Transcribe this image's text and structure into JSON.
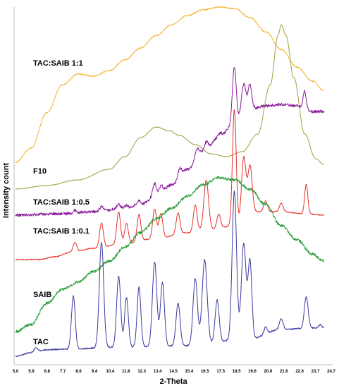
{
  "chart_data": {
    "type": "line",
    "xlabel": "2-Theta",
    "ylabel": "Intensity count",
    "xlim": [
      5.0,
      25.2
    ],
    "x_ticks": [
      "5.0",
      "5.9",
      "6.8",
      "7.7",
      "8.6",
      "9.4",
      "10.4",
      "11.8",
      "12.3",
      "13.4",
      "14.5",
      "15.4",
      "16.5",
      "17.5",
      "18.5",
      "19.6",
      "20.6",
      "21.6",
      "22.6",
      "23.7",
      "24.7"
    ],
    "grid": false,
    "legend": "none (series labelled directly on the left)",
    "series": [
      {
        "name": "TAC:SAIB 1:1",
        "color": "#f5b335",
        "noise": 0.8,
        "points": [
          [
            5.0,
            230
          ],
          [
            6.0,
            210
          ],
          [
            7.0,
            160
          ],
          [
            8.0,
            120
          ],
          [
            9.0,
            105
          ],
          [
            10.0,
            108
          ],
          [
            11.0,
            100
          ],
          [
            12.0,
            85
          ],
          [
            13.0,
            68
          ],
          [
            14.0,
            50
          ],
          [
            15.0,
            35
          ],
          [
            16.0,
            22
          ],
          [
            17.0,
            14
          ],
          [
            18.0,
            10
          ],
          [
            19.0,
            12
          ],
          [
            20.0,
            25
          ],
          [
            21.0,
            45
          ],
          [
            22.0,
            70
          ],
          [
            23.0,
            95
          ],
          [
            24.0,
            115
          ],
          [
            24.7,
            128
          ]
        ]
      },
      {
        "name": "F10",
        "color": "#a0a040",
        "noise": 0.3,
        "points": [
          [
            5.0,
            268
          ],
          [
            7.0,
            263
          ],
          [
            9.0,
            255
          ],
          [
            11.0,
            240
          ],
          [
            12.0,
            222
          ],
          [
            13.0,
            195
          ],
          [
            14.0,
            180
          ],
          [
            14.8,
            185
          ],
          [
            15.5,
            192
          ],
          [
            16.5,
            205
          ],
          [
            17.5,
            218
          ],
          [
            18.5,
            222
          ],
          [
            19.5,
            215
          ],
          [
            20.5,
            190
          ],
          [
            21.3,
            120
          ],
          [
            21.8,
            50
          ],
          [
            22.0,
            35
          ],
          [
            22.3,
            50
          ],
          [
            22.8,
            110
          ],
          [
            23.5,
            190
          ],
          [
            24.2,
            225
          ],
          [
            24.7,
            233
          ]
        ]
      },
      {
        "name": "TAC:SAIB 1:0.5",
        "color": "#8b1f9b",
        "noise": 2.0,
        "points": [
          [
            5.0,
            305
          ],
          [
            8.0,
            303
          ],
          [
            10.0,
            300
          ],
          [
            12.0,
            295
          ],
          [
            13.0,
            290
          ],
          [
            14.0,
            278
          ],
          [
            15.0,
            262
          ],
          [
            16.0,
            240
          ],
          [
            17.0,
            215
          ],
          [
            18.0,
            195
          ],
          [
            19.0,
            175
          ],
          [
            19.5,
            165
          ],
          [
            20.0,
            155
          ],
          [
            21.0,
            150
          ],
          [
            22.0,
            148
          ],
          [
            23.0,
            150
          ],
          [
            24.0,
            158
          ],
          [
            24.7,
            158
          ]
        ],
        "peaks": [
          [
            8.8,
            4,
            0.1
          ],
          [
            10.5,
            6,
            0.12
          ],
          [
            11.6,
            6,
            0.12
          ],
          [
            12.1,
            4,
            0.1
          ],
          [
            12.9,
            6,
            0.12
          ],
          [
            13.9,
            18,
            0.12
          ],
          [
            14.3,
            12,
            0.12
          ],
          [
            15.5,
            12,
            0.12
          ],
          [
            16.6,
            12,
            0.12
          ],
          [
            17.2,
            12,
            0.12
          ],
          [
            18.1,
            6,
            0.12
          ],
          [
            19.0,
            80,
            0.12
          ],
          [
            19.6,
            45,
            0.14
          ],
          [
            20.0,
            35,
            0.12
          ],
          [
            23.5,
            25,
            0.1
          ]
        ]
      },
      {
        "name": "TAC:SAIB 1:0.1",
        "color": "#e8302a",
        "noise": 0.6,
        "points": [
          [
            5.0,
            368
          ],
          [
            6.5,
            368
          ],
          [
            7.5,
            364
          ],
          [
            8.5,
            358
          ],
          [
            10.0,
            352
          ],
          [
            12.0,
            345
          ],
          [
            14.0,
            338
          ],
          [
            16.0,
            330
          ],
          [
            17.5,
            325
          ],
          [
            19.0,
            320
          ],
          [
            20.5,
            300
          ],
          [
            22.0,
            300
          ],
          [
            23.5,
            303
          ],
          [
            24.7,
            305
          ]
        ],
        "peaks": [
          [
            8.8,
            14,
            0.12
          ],
          [
            10.5,
            35,
            0.12
          ],
          [
            11.6,
            45,
            0.12
          ],
          [
            12.1,
            28,
            0.12
          ],
          [
            12.9,
            38,
            0.12
          ],
          [
            13.9,
            42,
            0.12
          ],
          [
            14.3,
            35,
            0.12
          ],
          [
            15.4,
            30,
            0.12
          ],
          [
            16.5,
            38,
            0.12
          ],
          [
            17.2,
            70,
            0.15
          ],
          [
            18.0,
            20,
            0.12
          ],
          [
            19.0,
            165,
            0.12
          ],
          [
            19.6,
            90,
            0.14
          ],
          [
            20.0,
            70,
            0.14
          ],
          [
            21.0,
            15,
            0.12
          ],
          [
            22.0,
            12,
            0.12
          ],
          [
            23.6,
            42,
            0.1
          ]
        ]
      },
      {
        "name": "SAIB",
        "color": "#2a9d3a",
        "noise": 2.0,
        "points": [
          [
            5.0,
            470
          ],
          [
            6.0,
            460
          ],
          [
            7.0,
            430
          ],
          [
            8.0,
            410
          ],
          [
            9.0,
            400
          ],
          [
            10.0,
            385
          ],
          [
            11.0,
            370
          ],
          [
            12.0,
            350
          ],
          [
            13.0,
            330
          ],
          [
            14.0,
            310
          ],
          [
            15.0,
            295
          ],
          [
            16.0,
            278
          ],
          [
            17.0,
            262
          ],
          [
            18.0,
            252
          ],
          [
            19.0,
            255
          ],
          [
            20.0,
            268
          ],
          [
            21.0,
            290
          ],
          [
            22.0,
            320
          ],
          [
            23.0,
            340
          ],
          [
            24.0,
            360
          ],
          [
            24.7,
            370
          ]
        ]
      },
      {
        "name": "TAC",
        "color": "#3b3ba0",
        "noise": 1.0,
        "points": [
          [
            5.0,
            505
          ],
          [
            6.0,
            500
          ],
          [
            7.0,
            496
          ],
          [
            8.0,
            495
          ],
          [
            12.0,
            492
          ],
          [
            16.0,
            490
          ],
          [
            20.0,
            480
          ],
          [
            22.0,
            467
          ],
          [
            24.0,
            465
          ],
          [
            24.7,
            465
          ]
        ],
        "peaks": [
          [
            6.3,
            6,
            0.12
          ],
          [
            8.7,
            75,
            0.12
          ],
          [
            10.5,
            150,
            0.14
          ],
          [
            11.6,
            100,
            0.13
          ],
          [
            12.1,
            70,
            0.12
          ],
          [
            12.9,
            85,
            0.12
          ],
          [
            13.9,
            120,
            0.14
          ],
          [
            14.4,
            90,
            0.13
          ],
          [
            15.4,
            60,
            0.13
          ],
          [
            16.5,
            95,
            0.14
          ],
          [
            17.1,
            120,
            0.16
          ],
          [
            17.9,
            60,
            0.13
          ],
          [
            19.0,
            210,
            0.14
          ],
          [
            19.6,
            135,
            0.15
          ],
          [
            20.0,
            110,
            0.12
          ],
          [
            21.0,
            10,
            0.1
          ],
          [
            22.0,
            15,
            0.12
          ],
          [
            23.6,
            45,
            0.12
          ],
          [
            24.5,
            5,
            0.1
          ]
        ]
      }
    ],
    "label_positions_hint": "labels sit at left margin next to each trace"
  }
}
